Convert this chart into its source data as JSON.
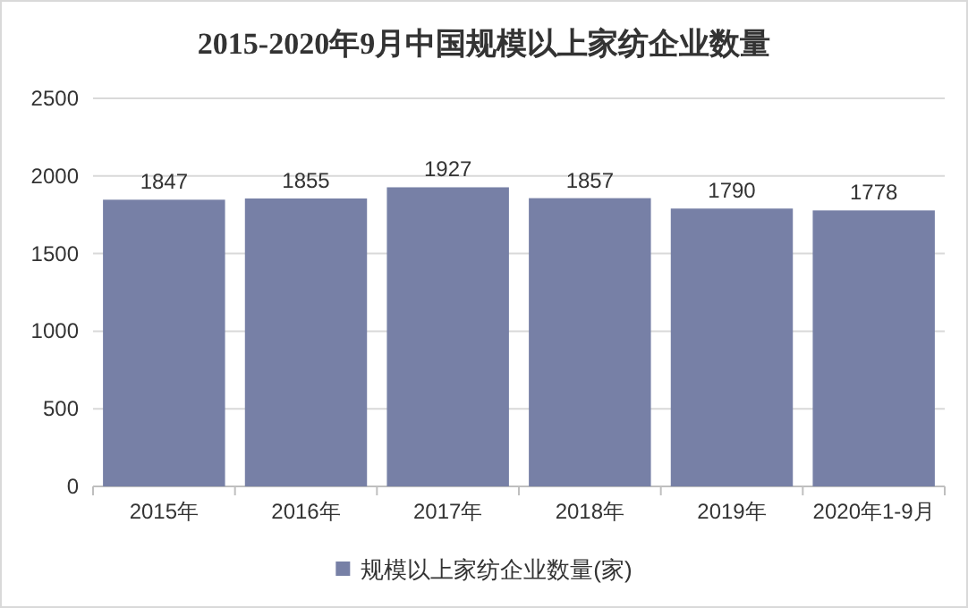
{
  "chart_data": {
    "type": "bar",
    "title": "2015-2020年9月中国规模以上家纺企业数量",
    "categories": [
      "2015年",
      "2016年",
      "2017年",
      "2018年",
      "2019年",
      "2020年1-9月"
    ],
    "series": [
      {
        "name": "规模以上家纺企业数量(家)",
        "color": "#7780a6",
        "values": [
          1847,
          1855,
          1927,
          1857,
          1790,
          1778
        ]
      }
    ],
    "ylim": [
      0,
      2500
    ],
    "yticks": [
      0,
      500,
      1000,
      1500,
      2000,
      2500
    ],
    "grid": "y",
    "data_labels": true,
    "legend": "bottom"
  }
}
